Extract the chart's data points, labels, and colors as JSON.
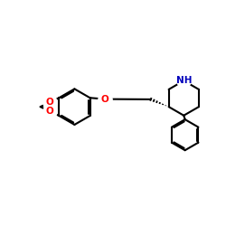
{
  "bg_color": "#ffffff",
  "bond_color": "#000000",
  "O_color": "#ff0000",
  "N_color": "#0000bb",
  "lw": 1.5,
  "dbo": 0.055,
  "xlim": [
    -4.8,
    4.2
  ],
  "ylim": [
    -3.0,
    2.8
  ]
}
